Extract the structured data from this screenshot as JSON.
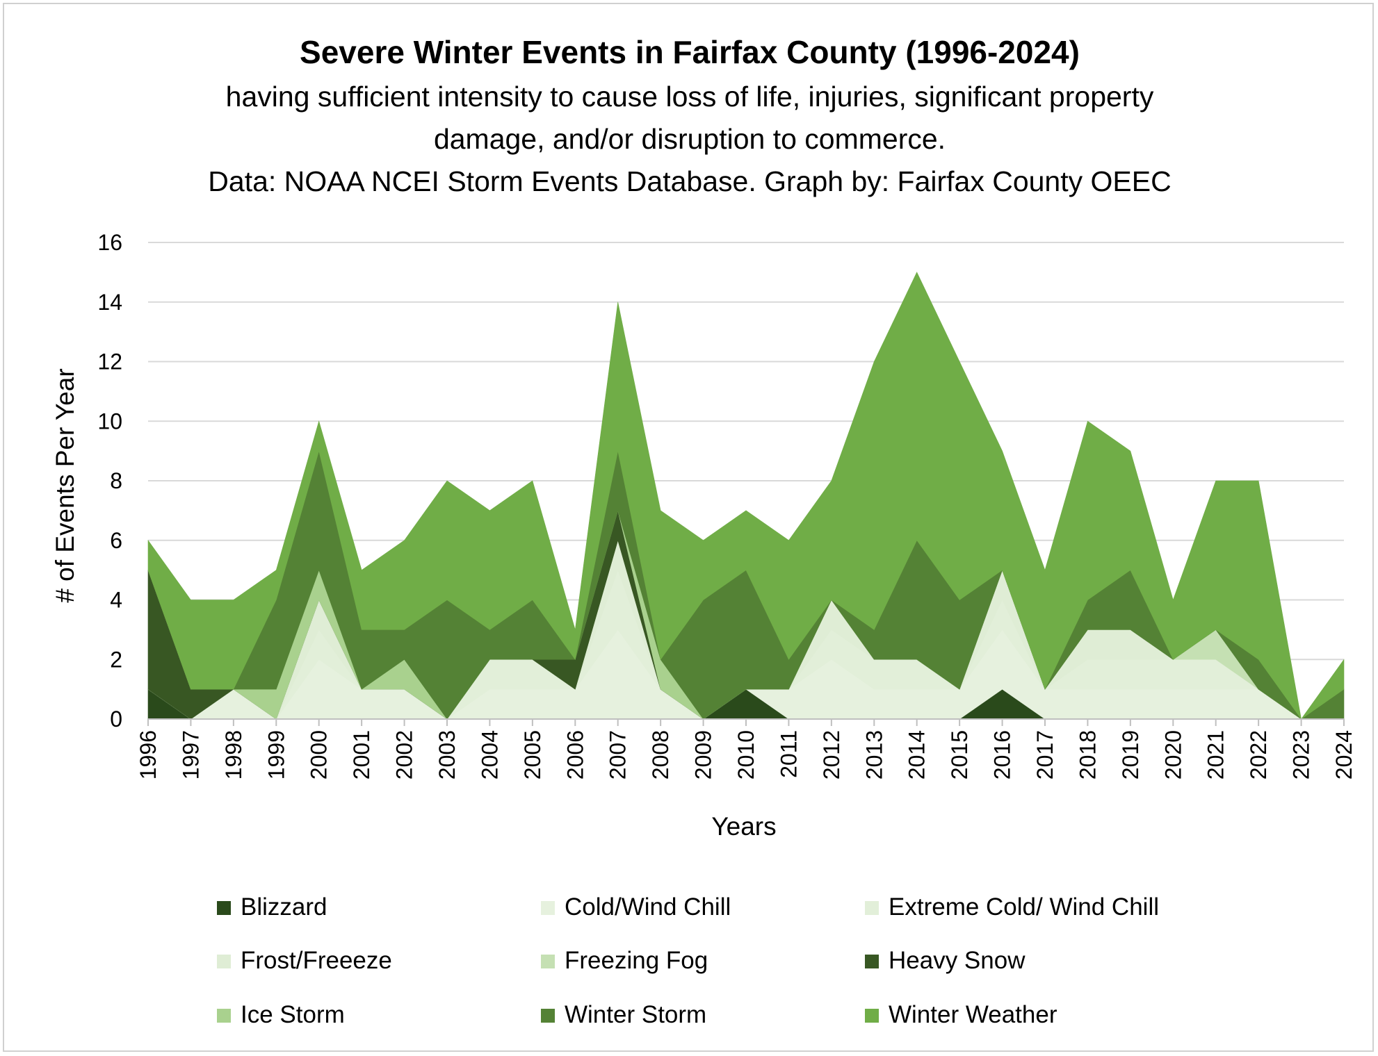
{
  "chart_data": {
    "type": "area",
    "stacked": true,
    "title": "Severe Winter Events in Fairfax County (1996-2024)",
    "subtitle_lines": [
      "having sufficient intensity to cause loss of life, injuries, significant property",
      "damage, and/or disruption to commerce.",
      "Data: NOAA NCEI Storm Events Database. Graph by: Fairfax County OEEC"
    ],
    "xlabel": "Years",
    "ylabel": "# of Events Per Year",
    "ylim": [
      0,
      16
    ],
    "yticks": [
      0,
      2,
      4,
      6,
      8,
      10,
      12,
      14,
      16
    ],
    "grid": true,
    "legend_position": "bottom",
    "categories": [
      "1996",
      "1997",
      "1998",
      "1999",
      "2000",
      "2001",
      "2002",
      "2003",
      "2004",
      "2005",
      "2006",
      "2007",
      "2008",
      "2009",
      "2010",
      "2011",
      "2012",
      "2013",
      "2014",
      "2015",
      "2016",
      "2017",
      "2018",
      "2019",
      "2020",
      "2021",
      "2022",
      "2023",
      "2024"
    ],
    "series": [
      {
        "name": "Blizzard",
        "color": "#2a4a1b",
        "values": [
          1,
          0,
          0,
          0,
          0,
          0,
          0,
          0,
          0,
          0,
          0,
          0,
          0,
          0,
          1,
          0,
          0,
          0,
          0,
          0,
          1,
          0,
          0,
          0,
          0,
          0,
          0,
          0,
          0
        ]
      },
      {
        "name": "Cold/Wind Chill",
        "color": "#e6f1de",
        "values": [
          0,
          0,
          1,
          0,
          2,
          1,
          1,
          0,
          1,
          1,
          1,
          3,
          1,
          0,
          0,
          1,
          2,
          1,
          1,
          1,
          2,
          1,
          1,
          1,
          1,
          1,
          1,
          0,
          0
        ]
      },
      {
        "name": "Extreme Cold/ Wind Chill",
        "color": "#e2efd9",
        "values": [
          0,
          0,
          0,
          0,
          1,
          0,
          0,
          0,
          1,
          1,
          0,
          2,
          0,
          0,
          0,
          0,
          1,
          1,
          1,
          0,
          1,
          0,
          1,
          1,
          1,
          1,
          0,
          0,
          0
        ]
      },
      {
        "name": "Frost/Freeeze",
        "color": "#dfedd5",
        "values": [
          0,
          0,
          0,
          0,
          1,
          0,
          0,
          0,
          0,
          0,
          0,
          1,
          0,
          0,
          0,
          0,
          1,
          0,
          0,
          0,
          1,
          0,
          1,
          1,
          0,
          0,
          0,
          0,
          0
        ]
      },
      {
        "name": "Freezing Fog",
        "color": "#c5e0b3",
        "values": [
          0,
          0,
          0,
          0,
          0,
          0,
          0,
          0,
          0,
          0,
          0,
          0,
          0,
          0,
          0,
          0,
          0,
          0,
          0,
          0,
          0,
          0,
          0,
          0,
          0,
          1,
          0,
          0,
          0
        ]
      },
      {
        "name": "Heavy Snow",
        "color": "#385723",
        "values": [
          4,
          1,
          0,
          0,
          0,
          0,
          0,
          0,
          0,
          0,
          1,
          1,
          0,
          0,
          0,
          0,
          0,
          0,
          0,
          0,
          0,
          0,
          0,
          0,
          0,
          0,
          0,
          0,
          0
        ]
      },
      {
        "name": "Ice Storm",
        "color": "#a9d18e",
        "values": [
          0,
          0,
          0,
          1,
          1,
          0,
          1,
          0,
          0,
          0,
          0,
          0,
          1,
          0,
          0,
          0,
          0,
          0,
          0,
          0,
          0,
          0,
          0,
          0,
          0,
          0,
          0,
          0,
          0
        ]
      },
      {
        "name": "Winter Storm",
        "color": "#548235",
        "values": [
          0,
          0,
          0,
          3,
          4,
          2,
          1,
          4,
          1,
          2,
          0,
          2,
          0,
          4,
          4,
          1,
          0,
          1,
          4,
          3,
          0,
          0,
          1,
          2,
          0,
          0,
          1,
          0,
          1
        ]
      },
      {
        "name": "Winter Weather",
        "color": "#70ad47",
        "values": [
          1,
          3,
          3,
          1,
          1,
          2,
          3,
          4,
          4,
          4,
          1,
          5,
          5,
          2,
          2,
          4,
          4,
          9,
          9,
          8,
          4,
          4,
          6,
          4,
          2,
          5,
          6,
          0,
          1
        ]
      }
    ]
  }
}
